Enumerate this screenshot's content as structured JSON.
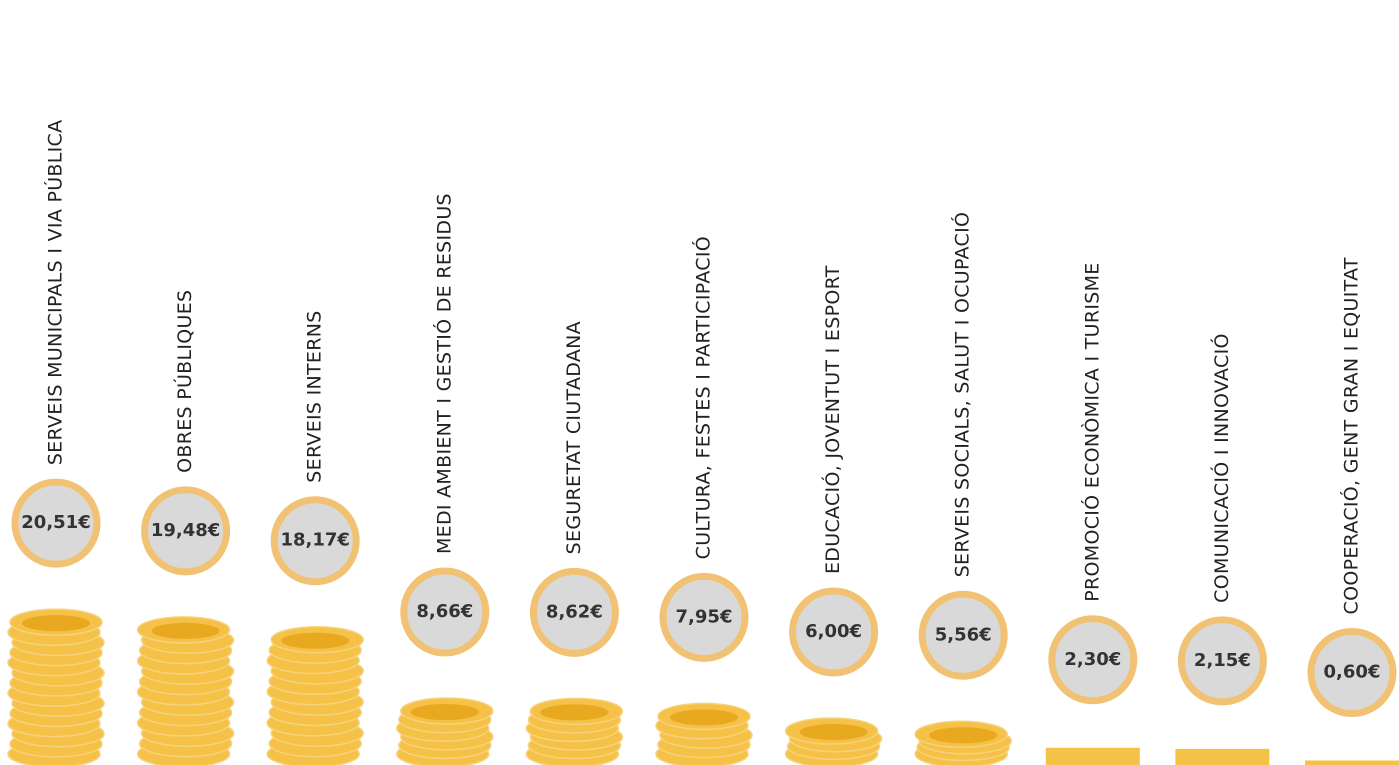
{
  "chart_data": {
    "type": "bar",
    "categories": [
      "SERVEIS MUNICIPALS I VIA PÚBLICA",
      "OBRES PÚBLIQUES",
      "SERVEIS INTERNS",
      "MEDI AMBIENT I GESTIÓ DE RESIDUS",
      "SEGURETAT CIUTADANA",
      "CULTURA, FESTES I PARTICIPACIÓ",
      "EDUCACIÓ, JOVENTUT I ESPORT",
      "SERVEIS SOCIALS, SALUT I OCUPACIÓ",
      "PROMOCIÓ ECONÒMICA I TURISME",
      "COMUNICACIÓ I INNOVACIÓ",
      "COOPERACIÓ, GENT GRAN I EQUITAT"
    ],
    "values": [
      20.51,
      19.48,
      18.17,
      8.66,
      8.62,
      7.95,
      6.0,
      5.56,
      2.3,
      2.15,
      0.6
    ],
    "value_labels": [
      "20,51€",
      "19,48€",
      "18,17€",
      "8,66€",
      "8,62€",
      "7,95€",
      "6,00€",
      "5,56€",
      "2,30€",
      "2,15€",
      "0,60€"
    ],
    "color": "#f5c146"
  }
}
